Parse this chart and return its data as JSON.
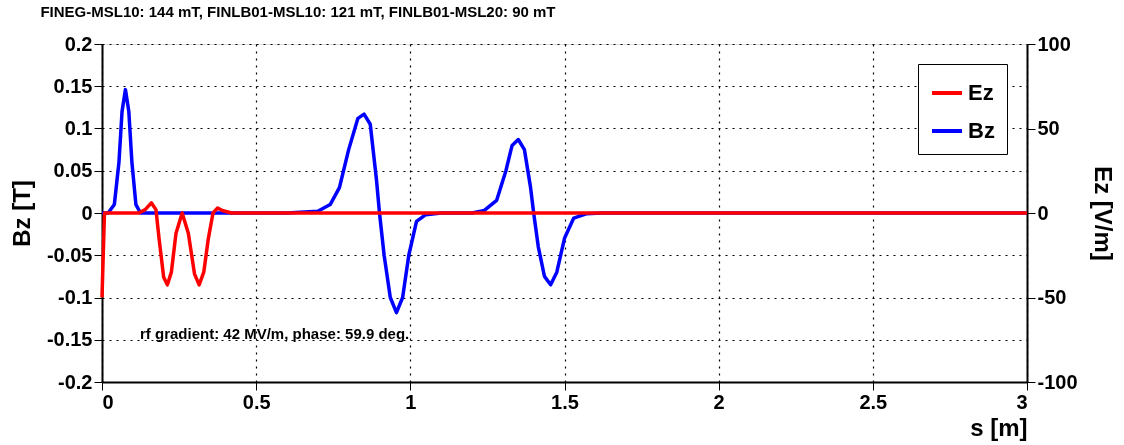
{
  "chart_data": {
    "type": "line",
    "title": "FINEG-MSL10: 144 mT, FINLB01-MSL10: 121 mT, FINLB01-MSL20: 90 mT",
    "xlabel": "s [m]",
    "ylabel": "Bz [T]",
    "y2label": "Ez [V/m]",
    "xlim": [
      0,
      3
    ],
    "xticks": [
      0,
      0.5,
      1,
      1.5,
      2,
      2.5,
      3
    ],
    "ylim": [
      -0.2,
      0.2
    ],
    "yticks": [
      -0.2,
      -0.15,
      -0.1,
      -0.05,
      0,
      0.05,
      0.1,
      0.15,
      0.2
    ],
    "y2lim": [
      -100,
      100
    ],
    "y2ticks": [
      -100,
      -50,
      0,
      50,
      100
    ],
    "grid": true,
    "legend": "top right",
    "line_style": "solid",
    "marker": "none",
    "annotations": [
      "rf gradient: 42 MV/m, phase: 59.9 deg."
    ],
    "series": [
      {
        "name": "Ez",
        "color": "#ff0000",
        "axis": "y2",
        "x": [
          0,
          0.004,
          0.008,
          0.12,
          0.14,
          0.16,
          0.175,
          0.185,
          0.2,
          0.212,
          0.225,
          0.24,
          0.26,
          0.28,
          0.3,
          0.315,
          0.33,
          0.345,
          0.36,
          0.375,
          0.39,
          0.42,
          3
        ],
        "values": [
          -50,
          -25,
          0,
          0,
          2,
          6,
          2,
          -15,
          -38,
          -42.5,
          -35,
          -12,
          0,
          -12,
          -36,
          -42.5,
          -35,
          -15,
          0,
          3,
          1.5,
          0,
          0
        ]
      },
      {
        "name": "Bz",
        "color": "#0000ff",
        "x": [
          0,
          0.02,
          0.04,
          0.055,
          0.065,
          0.076,
          0.087,
          0.097,
          0.11,
          0.125,
          0.6,
          0.7,
          0.74,
          0.77,
          0.8,
          0.83,
          0.85,
          0.87,
          0.89,
          0.9,
          0.915,
          0.935,
          0.955,
          0.975,
          0.995,
          1.02,
          1.05,
          1.1,
          1.2,
          1.24,
          1.28,
          1.31,
          1.33,
          1.35,
          1.37,
          1.39,
          1.4,
          1.415,
          1.435,
          1.455,
          1.475,
          1.5,
          1.53,
          1.57,
          1.62,
          3
        ],
        "values": [
          0,
          0,
          0.01,
          0.06,
          0.12,
          0.146,
          0.12,
          0.06,
          0.01,
          0,
          0,
          0.002,
          0.01,
          0.03,
          0.075,
          0.112,
          0.117,
          0.105,
          0.04,
          0,
          -0.05,
          -0.1,
          -0.118,
          -0.1,
          -0.05,
          -0.01,
          -0.002,
          0,
          0,
          0.003,
          0.015,
          0.05,
          0.08,
          0.087,
          0.075,
          0.03,
          0,
          -0.04,
          -0.075,
          -0.085,
          -0.07,
          -0.03,
          -0.006,
          -0.001,
          0,
          0
        ]
      }
    ]
  }
}
